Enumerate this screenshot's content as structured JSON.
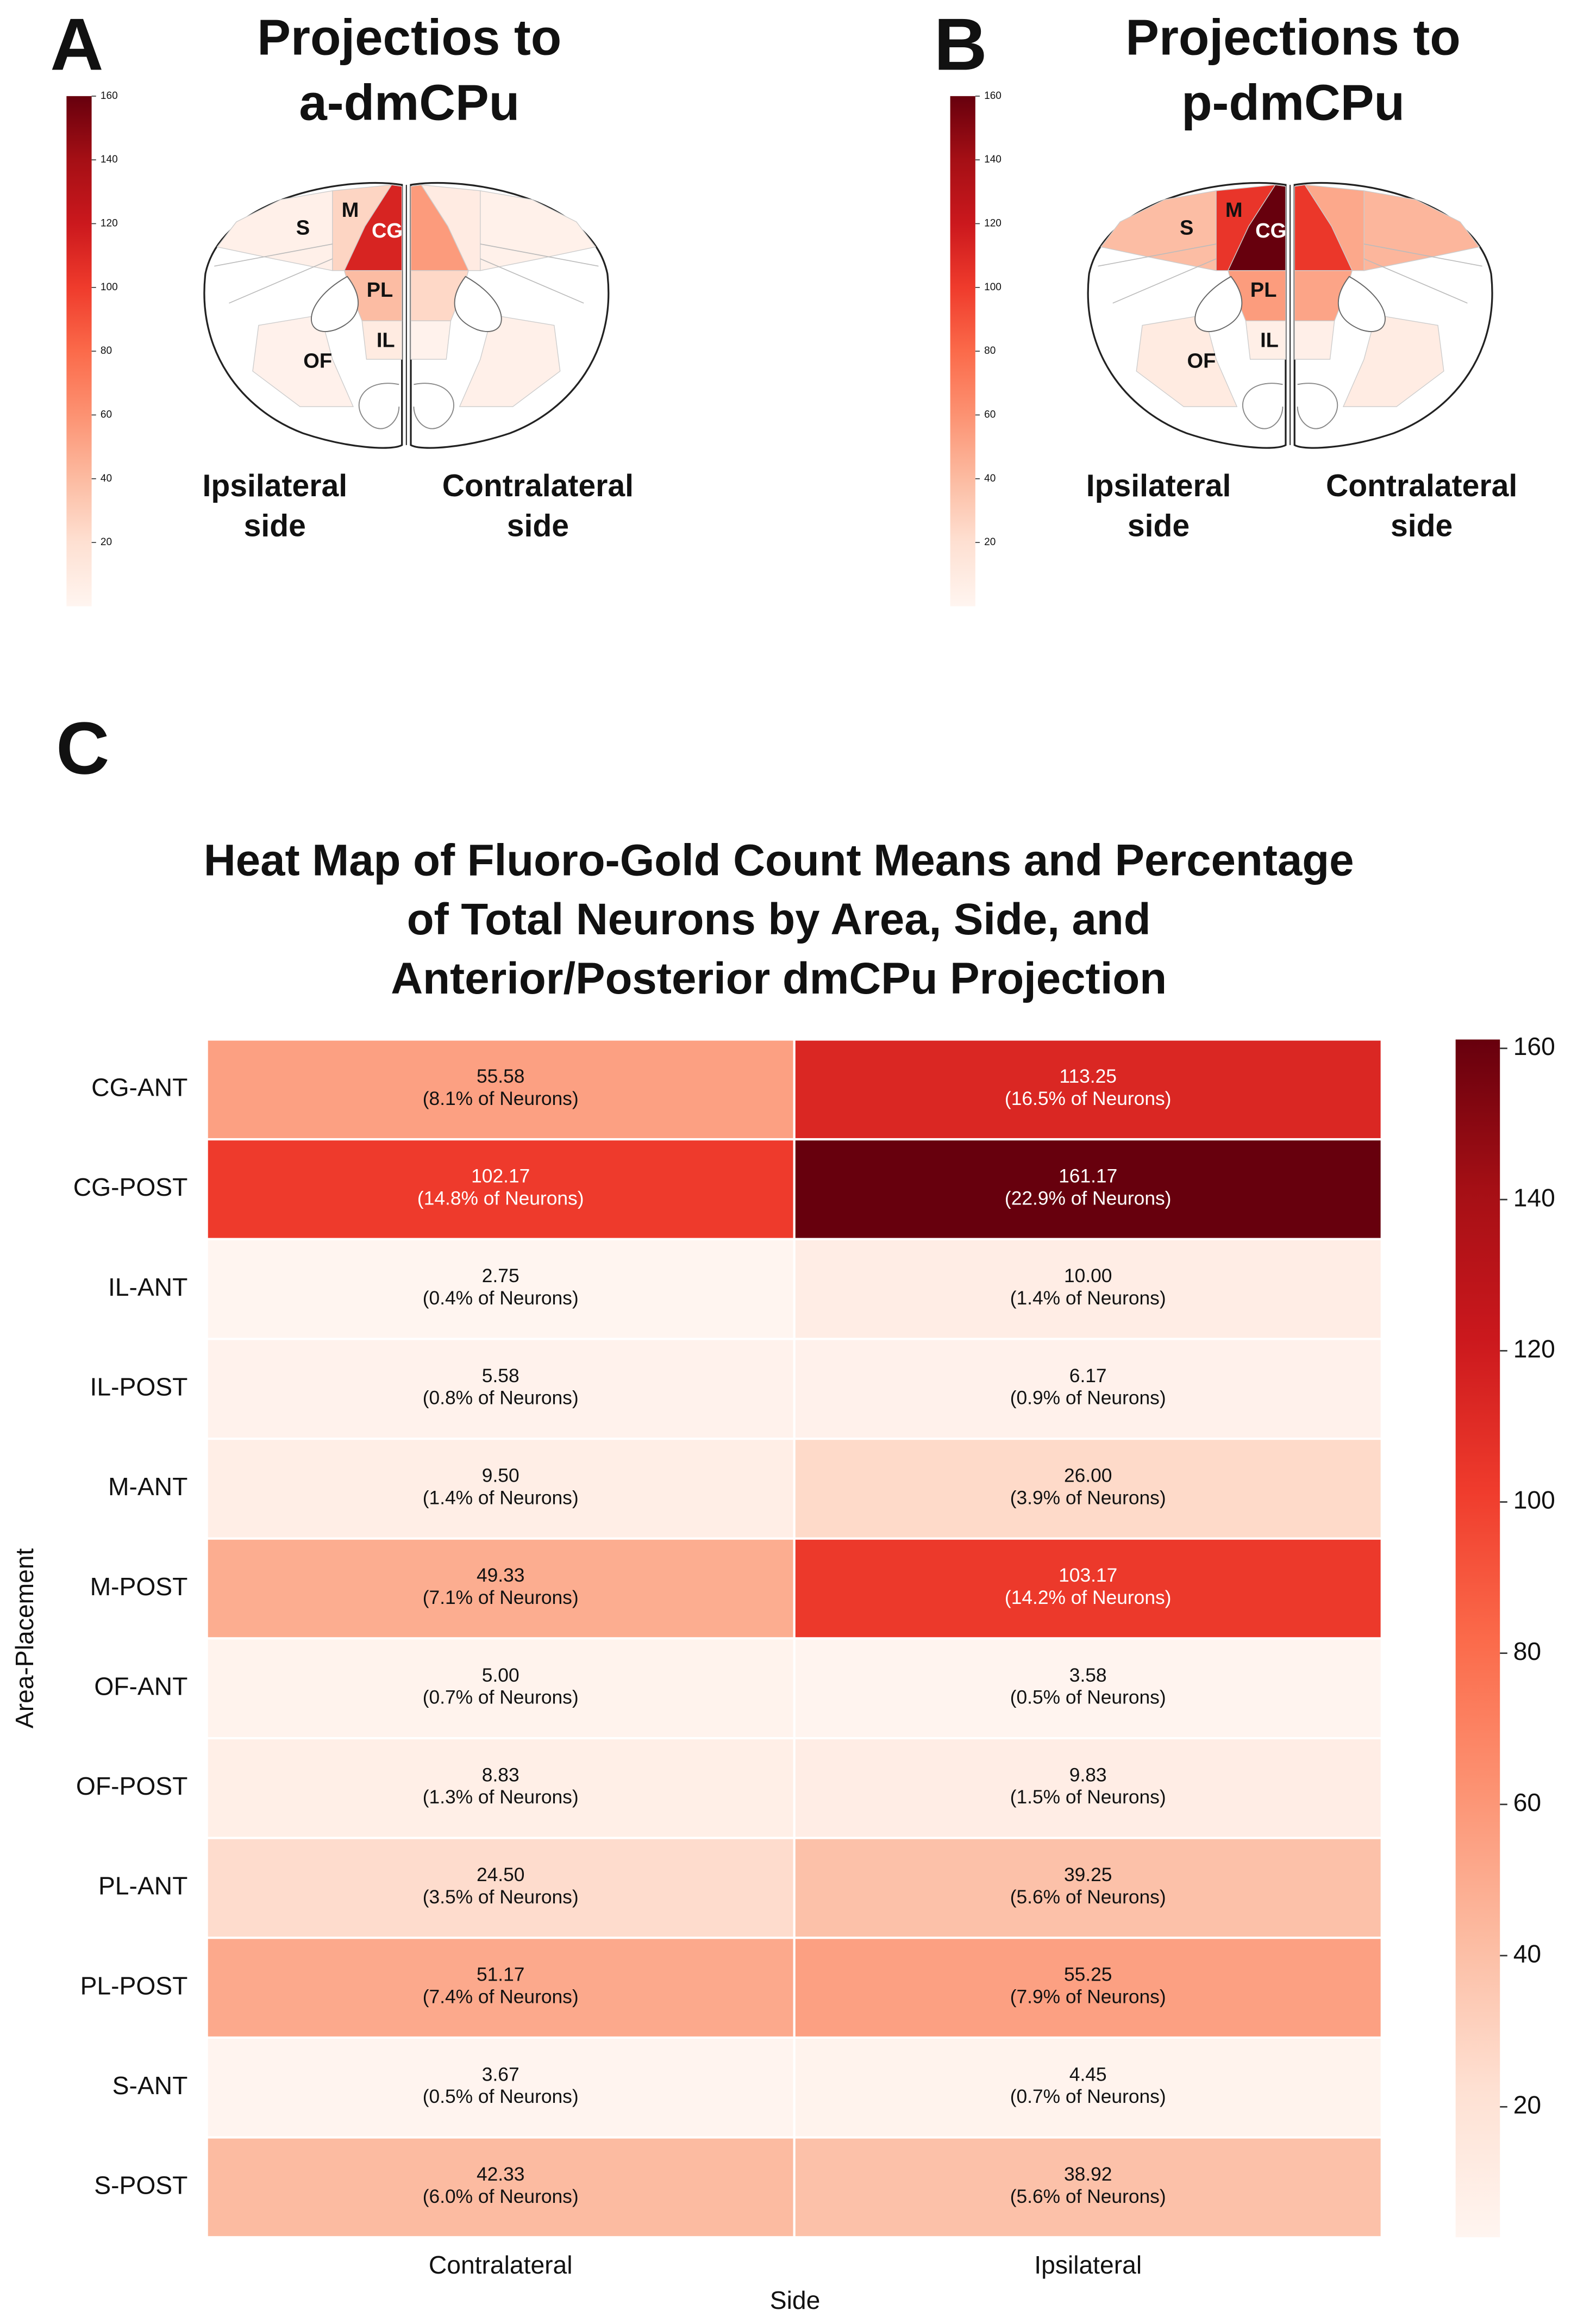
{
  "chart_data": [
    {
      "type": "brain-map",
      "panel": "A",
      "title": [
        "Projectios to",
        "a-dmCPu"
      ],
      "categories": [
        "S",
        "M",
        "CG",
        "PL",
        "IL",
        "OF"
      ],
      "series": [
        {
          "name": [
            "Ipsilateral",
            "side"
          ],
          "values": [
            4.45,
            26,
            113.25,
            39.25,
            10,
            3.58
          ]
        },
        {
          "name": [
            "Contralateral",
            "side"
          ],
          "values": [
            3.67,
            9.5,
            55.58,
            24.5,
            2.75,
            5
          ]
        }
      ],
      "zlim": [
        0,
        160
      ],
      "zticks": [
        20,
        40,
        60,
        80,
        100,
        120,
        140,
        160
      ],
      "colors": [
        "#fff5f0",
        "#fee0d2",
        "#fcbba1",
        "#fc9272",
        "#fb6a4a",
        "#ef3b2c",
        "#cb181d",
        "#a50f15",
        "#67000d"
      ]
    },
    {
      "type": "brain-map",
      "panel": "B",
      "title": [
        "Projections to",
        "p-dmCPu"
      ],
      "categories": [
        "S",
        "M",
        "CG",
        "PL",
        "IL",
        "OF"
      ],
      "series": [
        {
          "name": [
            "Ipsilateral",
            "side"
          ],
          "values": [
            38.92,
            103.17,
            161.17,
            55.25,
            6.17,
            9.83
          ]
        },
        {
          "name": [
            "Contralateral",
            "side"
          ],
          "values": [
            42.33,
            49.33,
            102.17,
            51.17,
            5.58,
            8.83
          ]
        }
      ],
      "zlim": [
        0,
        160
      ],
      "zticks": [
        20,
        40,
        60,
        80,
        100,
        120,
        140,
        160
      ],
      "colors": [
        "#fff5f0",
        "#fee0d2",
        "#fcbba1",
        "#fc9272",
        "#fb6a4a",
        "#ef3b2c",
        "#cb181d",
        "#a50f15",
        "#67000d"
      ]
    },
    {
      "type": "heatmap",
      "panel": "C",
      "title": [
        "Heat Map of Fluoro-Gold Count Means and Percentage",
        "of Total Neurons by Area, Side, and",
        "Anterior/Posterior dmCPu Projection"
      ],
      "categories": [
        "CG-ANT",
        "CG-POST",
        "IL-ANT",
        "IL-POST",
        "M-ANT",
        "M-POST",
        "OF-ANT",
        "OF-POST",
        "PL-ANT",
        "PL-POST",
        "S-ANT",
        "S-POST"
      ],
      "columns": [
        "Contralateral",
        "Ipsilateral"
      ],
      "xlabel": "Side",
      "ylabel": "Area-Placement",
      "values": [
        [
          55.58,
          113.25
        ],
        [
          102.17,
          161.17
        ],
        [
          2.75,
          10
        ],
        [
          5.58,
          6.17
        ],
        [
          9.5,
          26
        ],
        [
          49.33,
          103.17
        ],
        [
          5,
          3.58
        ],
        [
          8.83,
          9.83
        ],
        [
          24.5,
          39.25
        ],
        [
          51.17,
          55.25
        ],
        [
          3.67,
          4.45
        ],
        [
          42.33,
          38.92
        ]
      ],
      "value_labels": [
        [
          "55.58",
          "113.25"
        ],
        [
          "102.17",
          "161.17"
        ],
        [
          "2.75",
          "10.00"
        ],
        [
          "5.58",
          "6.17"
        ],
        [
          "9.50",
          "26.00"
        ],
        [
          "49.33",
          "103.17"
        ],
        [
          "5.00",
          "3.58"
        ],
        [
          "8.83",
          "9.83"
        ],
        [
          "24.50",
          "39.25"
        ],
        [
          "51.17",
          "55.25"
        ],
        [
          "3.67",
          "4.45"
        ],
        [
          "42.33",
          "38.92"
        ]
      ],
      "percent_labels": [
        [
          "(8.1% of Neurons)",
          "(16.5% of Neurons)"
        ],
        [
          "(14.8% of Neurons)",
          "(22.9% of Neurons)"
        ],
        [
          "(0.4% of Neurons)",
          "(1.4% of Neurons)"
        ],
        [
          "(0.8% of Neurons)",
          "(0.9% of Neurons)"
        ],
        [
          "(1.4% of Neurons)",
          "(3.9% of Neurons)"
        ],
        [
          "(7.1% of Neurons)",
          "(14.2% of Neurons)"
        ],
        [
          "(0.7% of Neurons)",
          "(0.5% of Neurons)"
        ],
        [
          "(1.3% of Neurons)",
          "(1.5% of Neurons)"
        ],
        [
          "(3.5% of Neurons)",
          "(5.6% of Neurons)"
        ],
        [
          "(7.4% of Neurons)",
          "(7.9% of Neurons)"
        ],
        [
          "(0.5% of Neurons)",
          "(0.7% of Neurons)"
        ],
        [
          "(6.0% of Neurons)",
          "(5.6% of Neurons)"
        ]
      ],
      "zlim": [
        2.75,
        161.17
      ],
      "zticks": [
        20,
        40,
        60,
        80,
        100,
        120,
        140,
        160
      ],
      "colors": [
        "#fff5f0",
        "#fee0d2",
        "#fcbba1",
        "#fc9272",
        "#fb6a4a",
        "#ef3b2c",
        "#cb181d",
        "#a50f15",
        "#67000d"
      ]
    }
  ]
}
